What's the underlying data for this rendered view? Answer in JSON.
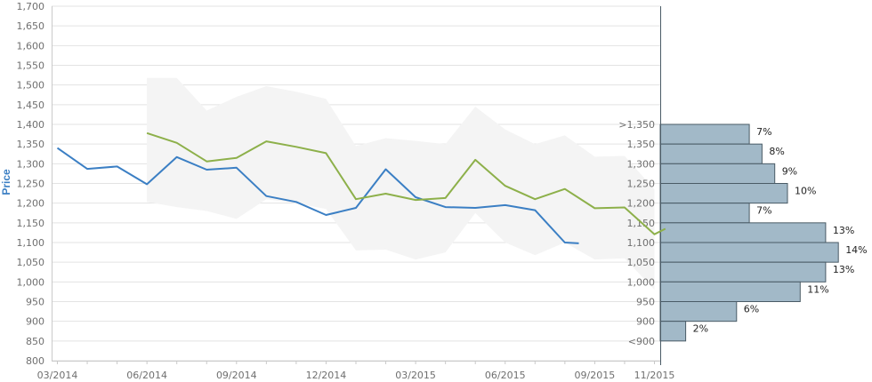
{
  "chart_data": {
    "type": "line",
    "ylabel": "Price",
    "ylim": [
      800,
      1700
    ],
    "y_ticks": [
      "800",
      "850",
      "900",
      "950",
      "1,000",
      "1,050",
      "1,100",
      "1,150",
      "1,200",
      "1,250",
      "1,300",
      "1,350",
      "1,400",
      "1,450",
      "1,500",
      "1,550",
      "1,600",
      "1,650",
      "1,700"
    ],
    "x_labels": [
      {
        "label": "03/2014",
        "date": "2014-03"
      },
      {
        "label": "06/2014",
        "date": "2014-06"
      },
      {
        "label": "09/2014",
        "date": "2014-09"
      },
      {
        "label": "12/2014",
        "date": "2014-12"
      },
      {
        "label": "03/2015",
        "date": "2015-03"
      },
      {
        "label": "06/2015",
        "date": "2015-06"
      },
      {
        "label": "09/2015",
        "date": "2015-09"
      },
      {
        "label": "11/2015",
        "date": "2015-11"
      }
    ],
    "grid": "horizontal",
    "series": [
      {
        "color": "#3b7fc4",
        "points": [
          {
            "x": "2014-03",
            "y": 1340
          },
          {
            "x": "2014-04",
            "y": 1287
          },
          {
            "x": "2014-05",
            "y": 1293
          },
          {
            "x": "2014-06",
            "y": 1248
          },
          {
            "x": "2014-07",
            "y": 1317
          },
          {
            "x": "2014-08",
            "y": 1285
          },
          {
            "x": "2014-09",
            "y": 1290
          },
          {
            "x": "2014-10",
            "y": 1218
          },
          {
            "x": "2014-11",
            "y": 1203
          },
          {
            "x": "2014-12",
            "y": 1170
          },
          {
            "x": "2015-01",
            "y": 1188
          },
          {
            "x": "2015-02",
            "y": 1286
          },
          {
            "x": "2015-03",
            "y": 1215
          },
          {
            "x": "2015-04",
            "y": 1190
          },
          {
            "x": "2015-05",
            "y": 1188
          },
          {
            "x": "2015-06",
            "y": 1195
          },
          {
            "x": "2015-07",
            "y": 1182
          },
          {
            "x": "2015-08",
            "y": 1100
          },
          {
            "x": "2015-08-15",
            "y": 1098
          }
        ]
      },
      {
        "color": "#8db04a",
        "points": [
          {
            "x": "2014-06",
            "y": 1378
          },
          {
            "x": "2014-07",
            "y": 1353
          },
          {
            "x": "2014-08",
            "y": 1306
          },
          {
            "x": "2014-09",
            "y": 1315
          },
          {
            "x": "2014-10",
            "y": 1357
          },
          {
            "x": "2014-11",
            "y": 1343
          },
          {
            "x": "2014-12",
            "y": 1327
          },
          {
            "x": "2015-01",
            "y": 1210
          },
          {
            "x": "2015-02",
            "y": 1224
          },
          {
            "x": "2015-03",
            "y": 1208
          },
          {
            "x": "2015-04",
            "y": 1213
          },
          {
            "x": "2015-05",
            "y": 1310
          },
          {
            "x": "2015-06",
            "y": 1244
          },
          {
            "x": "2015-07",
            "y": 1210
          },
          {
            "x": "2015-08",
            "y": 1236
          },
          {
            "x": "2015-09",
            "y": 1187
          },
          {
            "x": "2015-10",
            "y": 1189
          },
          {
            "x": "2015-11",
            "y": 1121
          },
          {
            "x": "2015-11-12",
            "y": 1135
          }
        ]
      }
    ],
    "range_band": {
      "color": "#f4f4f4",
      "upper": [
        {
          "x": "2014-06",
          "y": 1518
        },
        {
          "x": "2014-07",
          "y": 1518
        },
        {
          "x": "2014-08",
          "y": 1435
        },
        {
          "x": "2014-09",
          "y": 1470
        },
        {
          "x": "2014-10",
          "y": 1497
        },
        {
          "x": "2014-11",
          "y": 1483
        },
        {
          "x": "2014-12",
          "y": 1465
        },
        {
          "x": "2015-01",
          "y": 1345
        },
        {
          "x": "2015-02",
          "y": 1365
        },
        {
          "x": "2015-03",
          "y": 1358
        },
        {
          "x": "2015-04",
          "y": 1350
        },
        {
          "x": "2015-05",
          "y": 1445
        },
        {
          "x": "2015-06",
          "y": 1387
        },
        {
          "x": "2015-07",
          "y": 1350
        },
        {
          "x": "2015-08",
          "y": 1372
        },
        {
          "x": "2015-09",
          "y": 1318
        },
        {
          "x": "2015-10",
          "y": 1320
        },
        {
          "x": "2015-11",
          "y": 1235
        }
      ],
      "lower": [
        {
          "x": "2014-06",
          "y": 1203
        },
        {
          "x": "2014-07",
          "y": 1190
        },
        {
          "x": "2014-08",
          "y": 1180
        },
        {
          "x": "2014-09",
          "y": 1160
        },
        {
          "x": "2014-10",
          "y": 1210
        },
        {
          "x": "2014-11",
          "y": 1200
        },
        {
          "x": "2014-12",
          "y": 1185
        },
        {
          "x": "2015-01",
          "y": 1080
        },
        {
          "x": "2015-02",
          "y": 1082
        },
        {
          "x": "2015-03",
          "y": 1057
        },
        {
          "x": "2015-04",
          "y": 1075
        },
        {
          "x": "2015-05",
          "y": 1175
        },
        {
          "x": "2015-06",
          "y": 1100
        },
        {
          "x": "2015-07",
          "y": 1068
        },
        {
          "x": "2015-08",
          "y": 1100
        },
        {
          "x": "2015-09",
          "y": 1057
        },
        {
          "x": "2015-10",
          "y": 1060
        },
        {
          "x": "2015-11",
          "y": 980
        }
      ]
    },
    "distribution": {
      "type": "horizontal-bar",
      "color": "#a2b9c8",
      "bins": [
        {
          "label": ">1,350",
          "low": 1350,
          "high": 1400,
          "value": 7,
          "text": "7%"
        },
        {
          "label": "1,350",
          "low": 1300,
          "high": 1350,
          "value": 8,
          "text": "8%"
        },
        {
          "label": "1,300",
          "low": 1250,
          "high": 1300,
          "value": 9,
          "text": "9%"
        },
        {
          "label": "1,250",
          "low": 1200,
          "high": 1250,
          "value": 10,
          "text": "10%"
        },
        {
          "label": "1,200",
          "low": 1150,
          "high": 1200,
          "value": 7,
          "text": "7%"
        },
        {
          "label": "1,150",
          "low": 1100,
          "high": 1150,
          "value": 13,
          "text": "13%"
        },
        {
          "label": "1,100",
          "low": 1050,
          "high": 1100,
          "value": 14,
          "text": "14%"
        },
        {
          "label": "1,050",
          "low": 1000,
          "high": 1050,
          "value": 13,
          "text": "13%"
        },
        {
          "label": "1,000",
          "low": 950,
          "high": 1000,
          "value": 11,
          "text": "11%"
        },
        {
          "label": "950",
          "low": 900,
          "high": 950,
          "value": 6,
          "text": "6%"
        },
        {
          "label": "900",
          "low": 850,
          "high": 900,
          "value": 2,
          "text": "2%"
        },
        {
          "label": "<900",
          "low": 850,
          "high": 850,
          "value": 0,
          "text": ""
        }
      ]
    }
  }
}
